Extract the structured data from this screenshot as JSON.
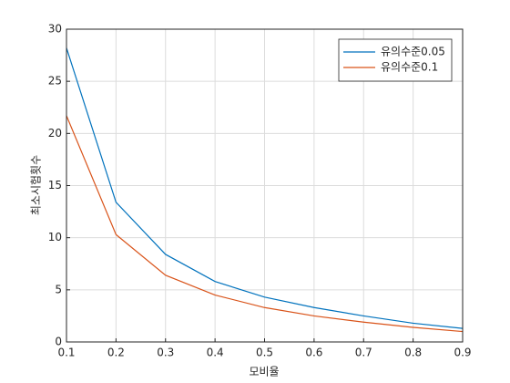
{
  "chart_data": {
    "type": "line",
    "x_label": "모비율",
    "y_label": "최소시험횟수",
    "x": [
      0.1,
      0.2,
      0.3,
      0.4,
      0.5,
      0.6,
      0.7,
      0.8,
      0.9
    ],
    "series": [
      {
        "name": "유의수준0.05",
        "color": "#0072bd",
        "values": [
          28.2,
          13.4,
          8.4,
          5.8,
          4.3,
          3.3,
          2.5,
          1.8,
          1.3
        ]
      },
      {
        "name": "유의수준0.1",
        "color": "#d95319",
        "values": [
          21.7,
          10.3,
          6.4,
          4.5,
          3.3,
          2.5,
          1.9,
          1.4,
          1.0
        ]
      }
    ],
    "xlim": [
      0.1,
      0.9
    ],
    "xticks": [
      0.1,
      0.2,
      0.3,
      0.4,
      0.5,
      0.6,
      0.7,
      0.8,
      0.9
    ],
    "ylim": [
      0,
      30
    ],
    "yticks": [
      0,
      5,
      10,
      15,
      20,
      25,
      30
    ],
    "grid": true,
    "legend": "northeast"
  }
}
